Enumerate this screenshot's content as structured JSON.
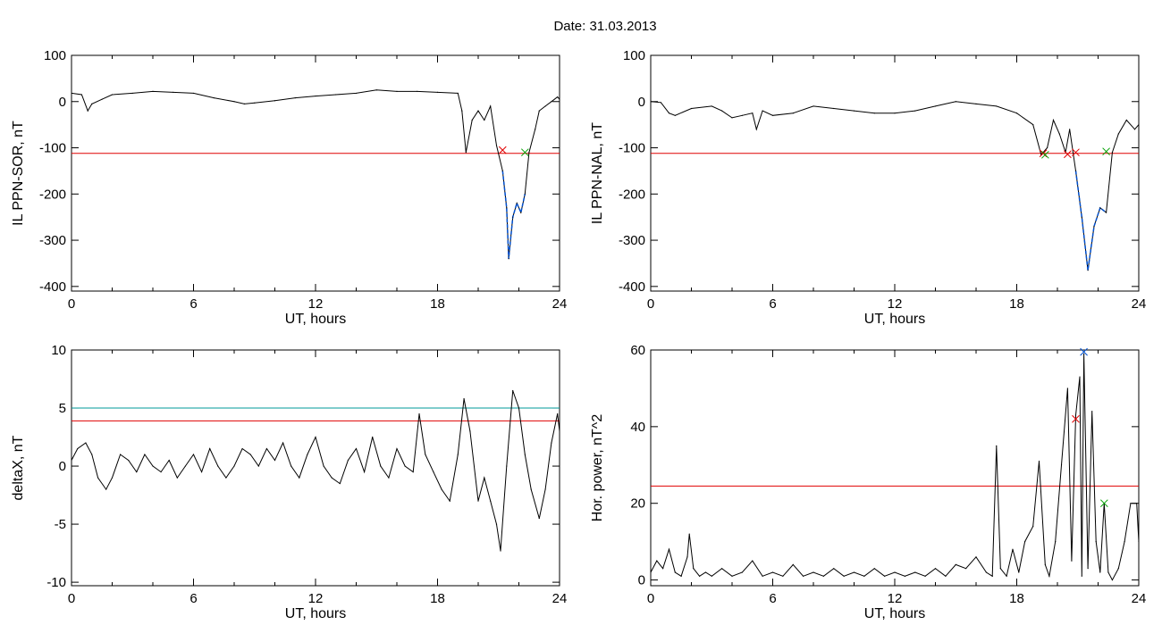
{
  "figure_title": "Date:  31.03.2013",
  "colors": {
    "trace": "#000000",
    "threshold_red": "#e00000",
    "threshold_cyan": "#009999",
    "highlight_blue": "#0050d0",
    "marker_red": "#e00000",
    "marker_green": "#00a000",
    "marker_blue": "#0050d0"
  },
  "chart_data": [
    {
      "type": "line",
      "xlabel": "UT, hours",
      "ylabel": "IL PPN-SOR, nT",
      "xlim": [
        0,
        24
      ],
      "ylim": [
        -410,
        100
      ],
      "xticks": [
        0,
        6,
        12,
        18,
        24
      ],
      "xtick_labels": [
        "0",
        "6",
        "12",
        "18",
        "24"
      ],
      "yticks": [
        100,
        0,
        -100,
        -200,
        -300,
        -400
      ],
      "ytick_labels": [
        "100",
        "0",
        "-100",
        "-200",
        "-300",
        "-400"
      ],
      "grid": false,
      "series": [
        {
          "x": [
            0,
            0.5,
            0.8,
            1,
            1.5,
            2,
            3,
            4,
            5,
            6,
            7,
            8,
            8.5,
            9,
            10,
            11,
            12,
            13,
            14,
            15,
            16,
            17,
            18,
            19,
            19.2,
            19.4,
            19.7,
            20,
            20.3,
            20.6,
            20.9,
            21.2,
            21.4,
            21.5,
            21.7,
            21.9,
            22.1,
            22.3,
            22.5,
            22.8,
            23,
            23.3,
            23.6,
            23.9,
            24
          ],
          "y": [
            18,
            15,
            -20,
            -5,
            5,
            15,
            18,
            22,
            20,
            18,
            8,
            0,
            -5,
            -3,
            2,
            8,
            12,
            15,
            18,
            25,
            22,
            22,
            20,
            18,
            -20,
            -110,
            -40,
            -20,
            -40,
            -10,
            -95,
            -150,
            -230,
            -340,
            -250,
            -220,
            -240,
            -200,
            -110,
            -60,
            -20,
            -10,
            0,
            10,
            5
          ]
        }
      ],
      "highlight": {
        "x_start": 21.2,
        "x_end": 22.3
      },
      "hlines": [
        {
          "y": -112,
          "color": "red"
        }
      ],
      "markers": [
        {
          "x": 21.2,
          "y": -105,
          "color": "red"
        },
        {
          "x": 22.3,
          "y": -110,
          "color": "green"
        }
      ]
    },
    {
      "type": "line",
      "xlabel": "UT, hours",
      "ylabel": "IL PPN-NAL, nT",
      "xlim": [
        0,
        24
      ],
      "ylim": [
        -410,
        100
      ],
      "xticks": [
        0,
        6,
        12,
        18,
        24
      ],
      "xtick_labels": [
        "0",
        "6",
        "12",
        "18",
        "24"
      ],
      "yticks": [
        100,
        0,
        -100,
        -200,
        -300,
        -400
      ],
      "ytick_labels": [
        "100",
        "0",
        "-100",
        "-200",
        "-300",
        "-400"
      ],
      "grid": false,
      "series": [
        {
          "x": [
            0,
            0.5,
            0.9,
            1.2,
            2,
            3,
            3.5,
            4,
            4.5,
            5,
            5.2,
            5.5,
            6,
            7,
            8,
            9,
            10,
            11,
            12,
            13,
            14,
            15,
            16,
            17,
            18,
            18.8,
            19.2,
            19.5,
            19.8,
            20.1,
            20.4,
            20.6,
            20.9,
            21.2,
            21.5,
            21.8,
            22.1,
            22.4,
            22.7,
            23,
            23.4,
            23.8,
            24
          ],
          "y": [
            0,
            -2,
            -25,
            -30,
            -15,
            -10,
            -20,
            -35,
            -30,
            -25,
            -60,
            -20,
            -30,
            -25,
            -10,
            -15,
            -20,
            -25,
            -25,
            -20,
            -10,
            0,
            -5,
            -10,
            -25,
            -50,
            -115,
            -100,
            -40,
            -70,
            -110,
            -60,
            -150,
            -250,
            -365,
            -270,
            -230,
            -240,
            -110,
            -70,
            -40,
            -60,
            -50
          ]
        }
      ],
      "highlight": {
        "x_start": 20.9,
        "x_end": 22.4
      },
      "hlines": [
        {
          "y": -112,
          "color": "red"
        }
      ],
      "markers": [
        {
          "x": 19.3,
          "y": -112,
          "color": "red"
        },
        {
          "x": 19.4,
          "y": -115,
          "color": "green"
        },
        {
          "x": 20.5,
          "y": -114,
          "color": "red"
        },
        {
          "x": 20.9,
          "y": -110,
          "color": "red"
        },
        {
          "x": 22.4,
          "y": -108,
          "color": "green"
        }
      ]
    },
    {
      "type": "line",
      "xlabel": "UT, hours",
      "ylabel": "deltaX, nT",
      "xlim": [
        0,
        24
      ],
      "ylim": [
        -10.3,
        10
      ],
      "xticks": [
        0,
        6,
        12,
        18,
        24
      ],
      "xtick_labels": [
        "0",
        "6",
        "12",
        "18",
        "24"
      ],
      "yticks": [
        10,
        5,
        0,
        -5,
        -10
      ],
      "ytick_labels": [
        "10",
        "5",
        "0",
        "-5",
        "-10"
      ],
      "grid": false,
      "series": [
        {
          "x": [
            0,
            0.3,
            0.7,
            1,
            1.3,
            1.7,
            2,
            2.4,
            2.8,
            3.2,
            3.6,
            4,
            4.4,
            4.8,
            5.2,
            5.6,
            6,
            6.4,
            6.8,
            7.2,
            7.6,
            8,
            8.4,
            8.8,
            9.2,
            9.6,
            10,
            10.4,
            10.8,
            11.2,
            11.6,
            12,
            12.4,
            12.8,
            13.2,
            13.6,
            14,
            14.4,
            14.8,
            15.2,
            15.6,
            16,
            16.4,
            16.8,
            17.1,
            17.4,
            17.8,
            18.2,
            18.6,
            19,
            19.3,
            19.6,
            20,
            20.3,
            20.6,
            20.9,
            21.1,
            21.4,
            21.7,
            22,
            22.3,
            22.6,
            23,
            23.3,
            23.6,
            23.9,
            24
          ],
          "y": [
            0.5,
            1.5,
            2,
            1,
            -1,
            -2,
            -1,
            1,
            0.5,
            -0.5,
            1,
            0,
            -0.5,
            0.5,
            -1,
            0,
            1,
            -0.5,
            1.5,
            0,
            -1,
            0,
            1.5,
            1,
            0,
            1.5,
            0.5,
            2,
            0,
            -1,
            1,
            2.5,
            0,
            -1,
            -1.5,
            0.5,
            1.5,
            -0.5,
            2.5,
            0,
            -1,
            1.5,
            0,
            -0.5,
            4.5,
            1,
            -0.5,
            -2,
            -3,
            1,
            5.8,
            3,
            -3,
            -1,
            -3,
            -5,
            -7.3,
            0,
            6.5,
            5,
            1,
            -2,
            -4.5,
            -2,
            2,
            4.5,
            3
          ]
        }
      ],
      "hlines": [
        {
          "y": 5,
          "color": "cyan"
        },
        {
          "y": 3.9,
          "color": "red"
        }
      ],
      "markers": []
    },
    {
      "type": "line",
      "xlabel": "UT, hours",
      "ylabel": "Hor. power, nT^2",
      "xlim": [
        0,
        24
      ],
      "ylim": [
        -1.5,
        60
      ],
      "xticks": [
        0,
        6,
        12,
        18,
        24
      ],
      "xtick_labels": [
        "0",
        "6",
        "12",
        "18",
        "24"
      ],
      "yticks": [
        60,
        40,
        20,
        0
      ],
      "ytick_labels": [
        "60",
        "40",
        "20",
        "0"
      ],
      "grid": false,
      "series": [
        {
          "x": [
            0,
            0.3,
            0.6,
            0.9,
            1.2,
            1.5,
            1.8,
            1.9,
            2.1,
            2.4,
            2.7,
            3,
            3.5,
            4,
            4.5,
            5,
            5.5,
            6,
            6.5,
            7,
            7.5,
            8,
            8.5,
            9,
            9.5,
            10,
            10.5,
            11,
            11.5,
            12,
            12.5,
            13,
            13.5,
            14,
            14.5,
            15,
            15.5,
            16,
            16.5,
            16.8,
            17,
            17.2,
            17.5,
            17.8,
            18.1,
            18.4,
            18.8,
            19.1,
            19.4,
            19.6,
            19.9,
            20.2,
            20.5,
            20.7,
            20.9,
            21.1,
            21.2,
            21.3,
            21.5,
            21.7,
            21.9,
            22.1,
            22.3,
            22.5,
            22.7,
            23,
            23.3,
            23.6,
            23.9,
            24
          ],
          "y": [
            2,
            5,
            3,
            8,
            2,
            1,
            6,
            12,
            3,
            1,
            2,
            1,
            3,
            1,
            2,
            5,
            1,
            2,
            1,
            4,
            1,
            2,
            1,
            3,
            1,
            2,
            1,
            3,
            1,
            2,
            1,
            2,
            1,
            3,
            1,
            4,
            3,
            6,
            2,
            1,
            35,
            3,
            1,
            8,
            2,
            10,
            14,
            31,
            4,
            1,
            10,
            30,
            50,
            5,
            43,
            53,
            1,
            59,
            3,
            44,
            10,
            2,
            20,
            2,
            0,
            3,
            10,
            20,
            20,
            10
          ]
        }
      ],
      "hlines": [
        {
          "y": 24.5,
          "color": "red"
        }
      ],
      "markers": [
        {
          "x": 20.9,
          "y": 42,
          "color": "red"
        },
        {
          "x": 21.3,
          "y": 59.5,
          "color": "blue"
        },
        {
          "x": 22.3,
          "y": 20,
          "color": "green"
        }
      ]
    }
  ]
}
